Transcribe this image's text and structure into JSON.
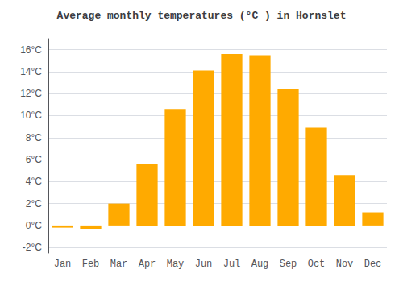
{
  "chart_data": {
    "type": "bar",
    "title": "Average monthly temperatures (°C ) in Hornslet",
    "categories": [
      "Jan",
      "Feb",
      "Mar",
      "Apr",
      "May",
      "Jun",
      "Jul",
      "Aug",
      "Sep",
      "Oct",
      "Nov",
      "Dec"
    ],
    "values": [
      -0.2,
      -0.3,
      2.0,
      5.6,
      10.6,
      14.1,
      15.6,
      15.5,
      12.4,
      8.9,
      4.6,
      1.2
    ],
    "color": "#FFAA00",
    "ylim": [
      -2.5,
      17
    ],
    "yticks": [
      {
        "value": -2,
        "label": "-2°C"
      },
      {
        "value": 0,
        "label": "0°C"
      },
      {
        "value": 2,
        "label": "2°C"
      },
      {
        "value": 4,
        "label": "4°C"
      },
      {
        "value": 6,
        "label": "6°C"
      },
      {
        "value": 8,
        "label": "8°C"
      },
      {
        "value": 10,
        "label": "10°C"
      },
      {
        "value": 12,
        "label": "12°C"
      },
      {
        "value": 14,
        "label": "14°C"
      },
      {
        "value": 16,
        "label": "16°C"
      }
    ],
    "grid": true
  }
}
